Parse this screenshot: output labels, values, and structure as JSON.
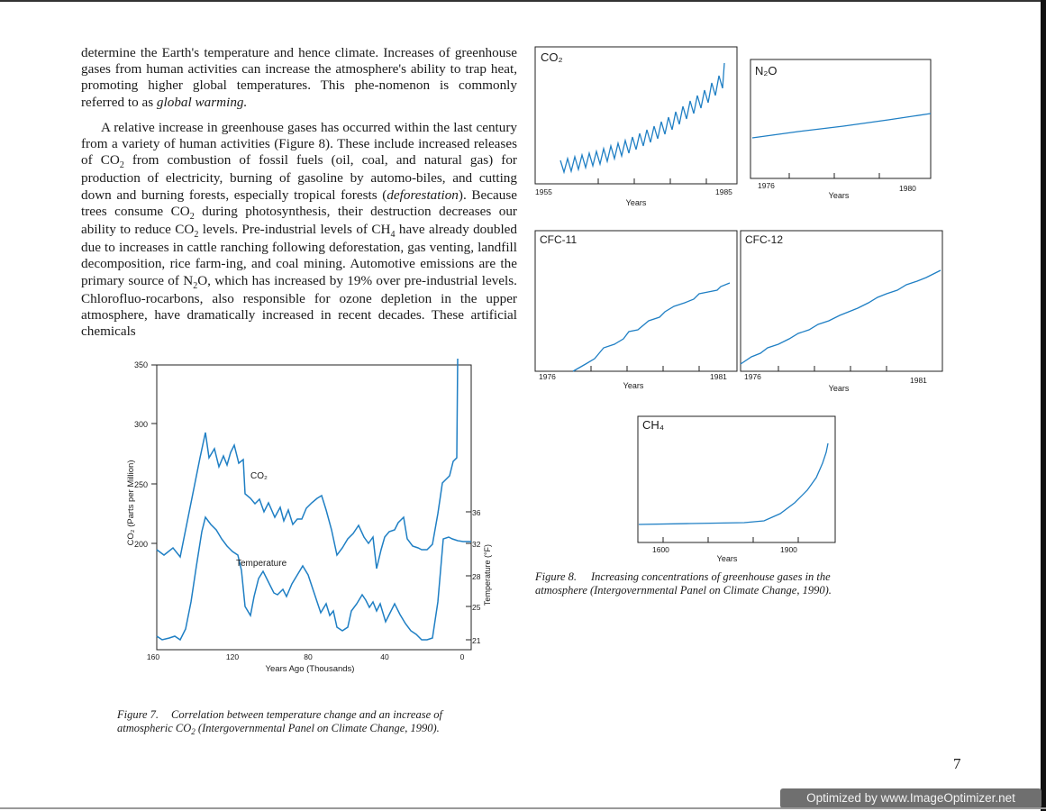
{
  "body_text": {
    "p1": "determine the Earth's temperature and hence climate. Increases of greenhouse gases from human activities can increase the atmosphere's ability to trap heat, promoting higher global temperatures. This phe-nomenon is commonly referred to as",
    "p1_em": "global warming.",
    "p2_a": "A relative increase in greenhouse gases has occurred within the last century from a variety of human activities (Figure 8). These include increased releases of CO",
    "p2_b": " from combustion of fossil fuels (oil, coal, and natural gas) for production of electricity, burning of gasoline by automo-biles, and cutting down and burning forests, especially tropical forests (",
    "p2_em": "deforestation",
    "p2_c": "). Because trees consume CO",
    "p2_d": " during photosynthesis, their destruction decreases our ability to reduce CO",
    "p2_e": " levels. Pre-industrial levels of CH",
    "p2_f": " have already doubled due to increases in cattle ranching following deforestation, gas venting, landfill decomposition, rice farm-ing, and coal mining. Automotive emissions are the primary source of N",
    "p2_g": "O, which has increased by 19% over pre-industrial levels. Chlorofluo-rocarbons, also responsible for ozone depletion in the upper atmosphere, have dramatically increased in recent decades. These artificial chemicals",
    "sub2": "2",
    "sub4": "4"
  },
  "figure7": {
    "caption_label": "Figure 7.",
    "caption_a": "Correlation between temperature change and an increase of atmospheric CO",
    "caption_sub": "2",
    "caption_b": " (Intergovernmental Panel on Climate Change, 1990).",
    "xlabel": "Years Ago (Thousands)",
    "ylabel_left": "CO₂ (Parts per Million)",
    "ylabel_right": "Temperature (°F)",
    "co2_label": "CO₂",
    "temp_label": "Temperature",
    "left_ticks": [
      "350",
      "300",
      "250",
      "200"
    ],
    "right_ticks": [
      "36",
      "32",
      "28",
      "25",
      "21"
    ],
    "x_ticks": [
      "160",
      "120",
      "80",
      "40",
      "0"
    ]
  },
  "figure8": {
    "caption_label": "Figure 8.",
    "caption": "Increasing concentrations of greenhouse gases in the atmosphere (Intergovernmental Panel on Climate Change, 1990).",
    "panels": {
      "co2": {
        "title": "CO₂",
        "x_start": "1955",
        "x_end": "1985",
        "xlabel": "Years"
      },
      "n2o": {
        "title": "N₂O",
        "x_start": "1976",
        "x_end": "1980",
        "xlabel": "Years"
      },
      "cfc11": {
        "title": "CFC-11",
        "x_start": "1976",
        "x_end": "1981",
        "xlabel": "Years"
      },
      "cfc12": {
        "title": "CFC-12",
        "x_start": "1976",
        "x_end": "1981",
        "xlabel": "Years"
      },
      "ch4": {
        "title": "CH₄",
        "x_start": "1600",
        "x_end": "1900",
        "xlabel": "Years"
      }
    }
  },
  "colors": {
    "curve": "#1f7fc4",
    "text": "#1a1a1a"
  },
  "page_number": "7",
  "watermark": "Optimized by www.ImageOptimizer.net"
}
